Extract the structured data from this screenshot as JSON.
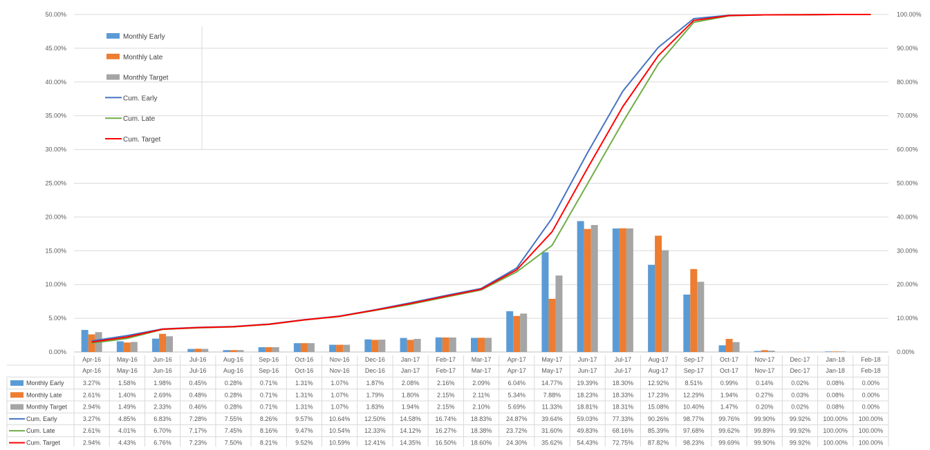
{
  "chart_data": {
    "type": "bar",
    "title": "",
    "categories": [
      "Apr-16",
      "May-16",
      "Jun-16",
      "Jul-16",
      "Aug-16",
      "Sep-16",
      "Oct-16",
      "Nov-16",
      "Dec-16",
      "Jan-17",
      "Feb-17",
      "Mar-17",
      "Apr-17",
      "May-17",
      "Jun-17",
      "Jul-17",
      "Aug-17",
      "Sep-17",
      "Oct-17",
      "Nov-17",
      "Dec-17",
      "Jan-18",
      "Feb-18"
    ],
    "y_left": {
      "min": 0,
      "max": 50,
      "ticks": [
        "0.00%",
        "5.00%",
        "10.00%",
        "15.00%",
        "20.00%",
        "25.00%",
        "30.00%",
        "35.00%",
        "40.00%",
        "45.00%",
        "50.00%"
      ]
    },
    "y_right": {
      "min": 0,
      "max": 100,
      "ticks": [
        "0.00%",
        "10.00%",
        "20.00%",
        "30.00%",
        "40.00%",
        "50.00%",
        "60.00%",
        "70.00%",
        "80.00%",
        "90.00%",
        "100.00%"
      ]
    },
    "grid": "horizontal",
    "legend_position": "top-left",
    "bar_series": [
      {
        "name": "Monthly Early",
        "color": "#5b9bd5",
        "values": [
          3.27,
          1.58,
          1.98,
          0.45,
          0.28,
          0.71,
          1.31,
          1.07,
          1.87,
          2.08,
          2.16,
          2.09,
          6.04,
          14.77,
          19.39,
          18.3,
          12.92,
          8.51,
          0.99,
          0.14,
          0.02,
          0.08,
          0.0
        ],
        "labels": [
          "3.27%",
          "1.58%",
          "1.98%",
          "0.45%",
          "0.28%",
          "0.71%",
          "1.31%",
          "1.07%",
          "1.87%",
          "2.08%",
          "2.16%",
          "2.09%",
          "6.04%",
          "14.77%",
          "19.39%",
          "18.30%",
          "12.92%",
          "8.51%",
          "0.99%",
          "0.14%",
          "0.02%",
          "0.08%",
          "0.00%"
        ]
      },
      {
        "name": "Monthly Late",
        "color": "#ed7d31",
        "values": [
          2.61,
          1.4,
          2.69,
          0.48,
          0.28,
          0.71,
          1.31,
          1.07,
          1.79,
          1.8,
          2.15,
          2.11,
          5.34,
          7.88,
          18.23,
          18.33,
          17.23,
          12.29,
          1.94,
          0.27,
          0.03,
          0.08,
          0.0
        ],
        "labels": [
          "2.61%",
          "1.40%",
          "2.69%",
          "0.48%",
          "0.28%",
          "0.71%",
          "1.31%",
          "1.07%",
          "1.79%",
          "1.80%",
          "2.15%",
          "2.11%",
          "5.34%",
          "7.88%",
          "18.23%",
          "18.33%",
          "17.23%",
          "12.29%",
          "1.94%",
          "0.27%",
          "0.03%",
          "0.08%",
          "0.00%"
        ]
      },
      {
        "name": "Monthly Target",
        "color": "#a5a5a5",
        "values": [
          2.94,
          1.49,
          2.33,
          0.46,
          0.28,
          0.71,
          1.31,
          1.07,
          1.83,
          1.94,
          2.15,
          2.1,
          5.69,
          11.33,
          18.81,
          18.31,
          15.08,
          10.4,
          1.47,
          0.2,
          0.02,
          0.08,
          0.0
        ],
        "labels": [
          "2.94%",
          "1.49%",
          "2.33%",
          "0.46%",
          "0.28%",
          "0.71%",
          "1.31%",
          "1.07%",
          "1.83%",
          "1.94%",
          "2.15%",
          "2.10%",
          "5.69%",
          "11.33%",
          "18.81%",
          "18.31%",
          "15.08%",
          "10.40%",
          "1.47%",
          "0.20%",
          "0.02%",
          "0.08%",
          "0.00%"
        ]
      }
    ],
    "line_series": [
      {
        "name": "Cum. Early",
        "color": "#4472c4",
        "values": [
          3.27,
          4.85,
          6.83,
          7.28,
          7.55,
          8.26,
          9.57,
          10.64,
          12.5,
          14.58,
          16.74,
          18.83,
          24.87,
          39.64,
          59.03,
          77.33,
          90.26,
          98.77,
          99.76,
          99.9,
          99.92,
          100.0,
          100.0
        ],
        "labels": [
          "3.27%",
          "4.85%",
          "6.83%",
          "7.28%",
          "7.55%",
          "8.26%",
          "9.57%",
          "10.64%",
          "12.50%",
          "14.58%",
          "16.74%",
          "18.83%",
          "24.87%",
          "39.64%",
          "59.03%",
          "77.33%",
          "90.26%",
          "98.77%",
          "99.76%",
          "99.90%",
          "99.92%",
          "100.00%",
          "100.00%"
        ]
      },
      {
        "name": "Cum. Late",
        "color": "#70ad47",
        "values": [
          2.61,
          4.01,
          6.7,
          7.17,
          7.45,
          8.16,
          9.47,
          10.54,
          12.33,
          14.12,
          16.27,
          18.38,
          23.72,
          31.6,
          49.83,
          68.16,
          85.39,
          97.68,
          99.62,
          99.89,
          99.92,
          100.0,
          100.0
        ],
        "labels": [
          "2.61%",
          "4.01%",
          "6.70%",
          "7.17%",
          "7.45%",
          "8.16%",
          "9.47%",
          "10.54%",
          "12.33%",
          "14.12%",
          "16.27%",
          "18.38%",
          "23.72%",
          "31.60%",
          "49.83%",
          "68.16%",
          "85.39%",
          "97.68%",
          "99.62%",
          "99.89%",
          "99.92%",
          "100.00%",
          "100.00%"
        ]
      },
      {
        "name": "Cum. Target",
        "color": "#ff0000",
        "values": [
          2.94,
          4.43,
          6.76,
          7.23,
          7.5,
          8.21,
          9.52,
          10.59,
          12.41,
          14.35,
          16.5,
          18.6,
          24.3,
          35.62,
          54.43,
          72.75,
          87.82,
          98.23,
          99.69,
          99.9,
          99.92,
          100.0,
          100.0
        ],
        "labels": [
          "2.94%",
          "4.43%",
          "6.76%",
          "7.23%",
          "7.50%",
          "8.21%",
          "9.52%",
          "10.59%",
          "12.41%",
          "14.35%",
          "16.50%",
          "18.60%",
          "24.30%",
          "35.62%",
          "54.43%",
          "72.75%",
          "87.82%",
          "98.23%",
          "99.69%",
          "99.90%",
          "99.92%",
          "100.00%",
          "100.00%"
        ]
      }
    ]
  }
}
